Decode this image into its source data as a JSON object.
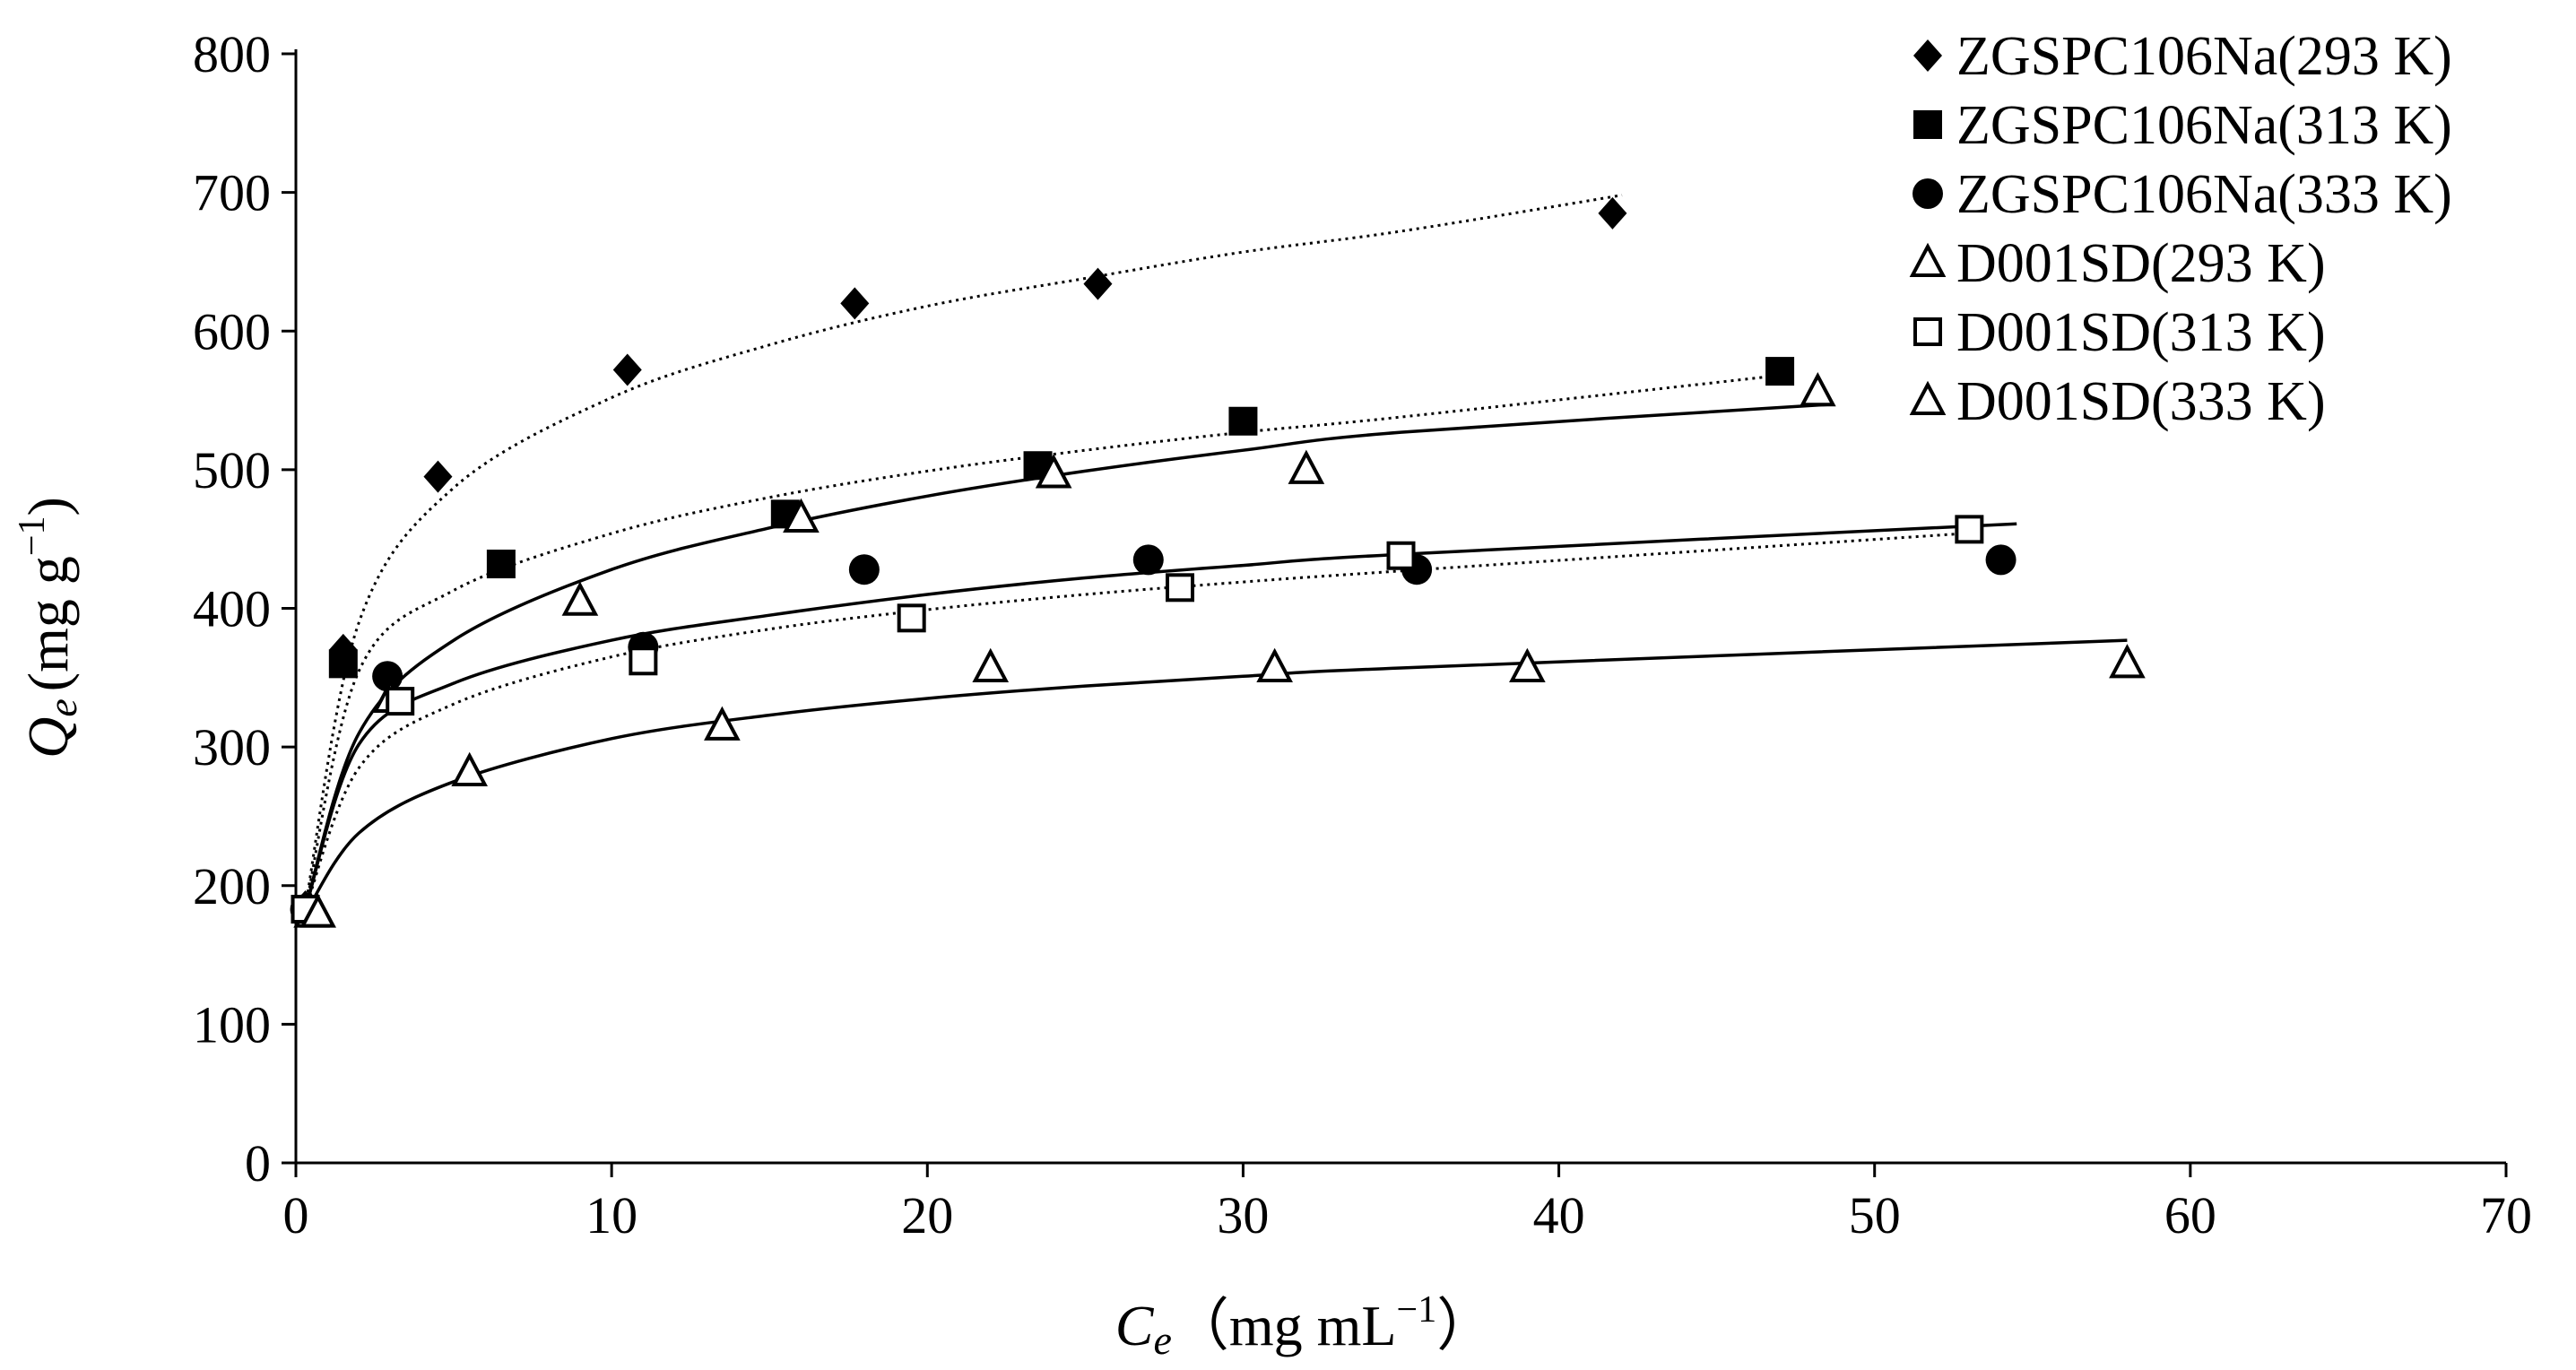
{
  "chart_data": {
    "type": "scatter",
    "xlabel": {
      "var": "C",
      "sub": "e",
      "unit": "（mg mL",
      "exp": "−1",
      "close": "）"
    },
    "ylabel": {
      "var": "Q",
      "sub": "e",
      "unit": "(mg g",
      "exp": "−1",
      "close": ")"
    },
    "xlim": [
      0,
      70
    ],
    "ylim": [
      0,
      800
    ],
    "xticks": [
      0,
      10,
      20,
      30,
      40,
      50,
      60,
      70
    ],
    "yticks": [
      0,
      100,
      200,
      300,
      400,
      500,
      600,
      700,
      800
    ],
    "legend_position": "top-right",
    "series": [
      {
        "name": "ZGSPC106Na(293 K)",
        "marker": "diamond-filled",
        "x": [
          0.3,
          1.5,
          4.5,
          10.5,
          17.7,
          25.4,
          41.7
        ],
        "y": [
          185,
          370,
          495,
          572,
          620,
          634,
          685
        ]
      },
      {
        "name": "ZGSPC106Na(313 K)",
        "marker": "square-filled",
        "x": [
          0.3,
          1.5,
          6.5,
          15.5,
          23.5,
          30.0,
          47.0
        ],
        "y": [
          183,
          360,
          432,
          468,
          503,
          535,
          571
        ]
      },
      {
        "name": "ZGSPC106Na(333 K)",
        "marker": "circle-filled",
        "x": [
          0.3,
          2.9,
          11.0,
          18.0,
          27.0,
          35.5,
          54.0
        ],
        "y": [
          183,
          351,
          372,
          428,
          435,
          428,
          435
        ]
      },
      {
        "name": "D001SD(293 K)",
        "marker": "triangle-open",
        "x": [
          0.5,
          3.0,
          9.0,
          16.0,
          24.0,
          32.0,
          48.2
        ],
        "y": [
          180,
          335,
          405,
          465,
          497,
          500,
          556
        ]
      },
      {
        "name": "D001SD(313 K)",
        "marker": "square-open",
        "x": [
          0.3,
          3.3,
          11.0,
          19.5,
          28.0,
          35.0,
          53.0
        ],
        "y": [
          183,
          333,
          362,
          393,
          415,
          438,
          457
        ]
      },
      {
        "name": "D001SD(333 K)",
        "marker": "triangle-open",
        "x": [
          0.7,
          5.5,
          13.5,
          22.0,
          31.0,
          39.0,
          58.0
        ],
        "y": [
          180,
          282,
          315,
          357,
          357,
          357,
          360
        ]
      }
    ],
    "fit_curves": [
      {
        "style": "dotted",
        "x": [
          0.3,
          2,
          5,
          10,
          15,
          20,
          25,
          30,
          35,
          42
        ],
        "y": [
          185,
          390,
          487,
          552,
          590,
          618,
          638,
          657,
          672,
          698
        ]
      },
      {
        "style": "dotted",
        "x": [
          0.3,
          2,
          5,
          10,
          15,
          20,
          25,
          30,
          35,
          47
        ],
        "y": [
          183,
          355,
          413,
          454,
          480,
          499,
          514,
          527,
          538,
          568
        ]
      },
      {
        "style": "solid",
        "x": [
          0.3,
          2,
          5,
          10,
          15,
          20,
          25,
          30,
          35,
          48.5
        ],
        "y": [
          183,
          310,
          377,
          428,
          458,
          481,
          499,
          514,
          527,
          547
        ]
      },
      {
        "style": "solid",
        "x": [
          0.3,
          2,
          5,
          10,
          15,
          20,
          25,
          30,
          35,
          54.5
        ],
        "y": [
          183,
          302,
          346,
          377,
          395,
          410,
          422,
          431,
          439,
          461
        ]
      },
      {
        "style": "dotted",
        "x": [
          0.3,
          2,
          5,
          10,
          15,
          20,
          25,
          30,
          35,
          53.5
        ],
        "y": [
          183,
          285,
          331,
          365,
          385,
          399,
          410,
          419,
          427,
          455
        ]
      },
      {
        "style": "solid",
        "x": [
          0.3,
          2,
          5,
          10,
          15,
          20,
          25,
          30,
          35,
          58
        ],
        "y": [
          180,
          238,
          275,
          306,
          323,
          335,
          344,
          351,
          357,
          377
        ]
      }
    ]
  }
}
